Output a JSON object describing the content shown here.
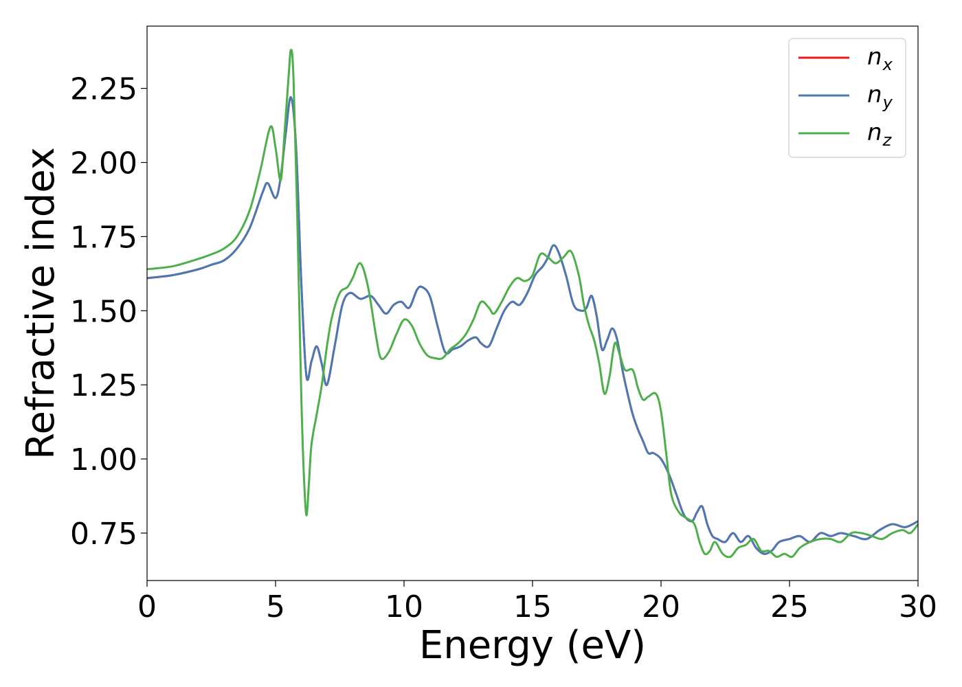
{
  "chart_data": {
    "type": "line",
    "xlabel": "Energy (eV)",
    "ylabel": "Refractive index",
    "xlim": [
      0,
      30
    ],
    "ylim": [
      0.59,
      2.46
    ],
    "xticks": [
      0,
      5,
      10,
      15,
      20,
      25,
      30
    ],
    "yticks": [
      0.75,
      1.0,
      1.25,
      1.5,
      1.75,
      2.0,
      2.25
    ],
    "xtick_labels": [
      "0",
      "5",
      "10",
      "15",
      "20",
      "25",
      "30"
    ],
    "ytick_labels": [
      "0.75",
      "1.00",
      "1.25",
      "1.50",
      "1.75",
      "2.00",
      "2.25"
    ],
    "grid": false,
    "legend_position": "top-right",
    "series": [
      {
        "name": "n",
        "subscript": "x",
        "color": "#e41a1c",
        "x": [
          0,
          1,
          2,
          2.5,
          3,
          3.5,
          4,
          4.5,
          4.7,
          5.0,
          5.2,
          5.4,
          5.6,
          5.8,
          6.0,
          6.2,
          6.4,
          6.6,
          6.8,
          7.0,
          7.3,
          7.6,
          7.9,
          8.3,
          8.7,
          9.0,
          9.3,
          9.6,
          9.9,
          10.2,
          10.5,
          10.7,
          11.0,
          11.3,
          11.6,
          11.9,
          12.2,
          12.5,
          12.8,
          13.0,
          13.3,
          13.6,
          13.9,
          14.2,
          14.5,
          14.8,
          15.1,
          15.4,
          15.6,
          15.8,
          16.0,
          16.3,
          16.6,
          16.9,
          17.1,
          17.3,
          17.5,
          17.7,
          17.9,
          18.1,
          18.3,
          18.5,
          18.7,
          18.9,
          19.1,
          19.3,
          19.5,
          19.7,
          20.0,
          20.3,
          20.6,
          20.9,
          21.2,
          21.4,
          21.6,
          21.8,
          22.0,
          22.2,
          22.5,
          22.8,
          23.1,
          23.4,
          23.7,
          24.0,
          24.3,
          24.6,
          25.0,
          25.4,
          25.8,
          26.2,
          26.6,
          27.0,
          27.5,
          28.0,
          28.5,
          29.0,
          29.5,
          30.0
        ],
        "y": [
          1.61,
          1.62,
          1.64,
          1.655,
          1.67,
          1.71,
          1.78,
          1.9,
          1.93,
          1.88,
          1.95,
          2.1,
          2.22,
          2.05,
          1.6,
          1.28,
          1.33,
          1.38,
          1.32,
          1.25,
          1.38,
          1.52,
          1.56,
          1.54,
          1.55,
          1.52,
          1.49,
          1.52,
          1.53,
          1.51,
          1.57,
          1.58,
          1.55,
          1.45,
          1.36,
          1.37,
          1.38,
          1.4,
          1.41,
          1.39,
          1.38,
          1.44,
          1.5,
          1.53,
          1.52,
          1.56,
          1.62,
          1.65,
          1.68,
          1.72,
          1.7,
          1.62,
          1.52,
          1.5,
          1.51,
          1.55,
          1.48,
          1.37,
          1.4,
          1.44,
          1.4,
          1.3,
          1.22,
          1.15,
          1.1,
          1.06,
          1.02,
          1.02,
          1.0,
          0.95,
          0.88,
          0.81,
          0.79,
          0.82,
          0.84,
          0.78,
          0.74,
          0.73,
          0.72,
          0.75,
          0.72,
          0.74,
          0.7,
          0.68,
          0.69,
          0.72,
          0.73,
          0.74,
          0.72,
          0.75,
          0.74,
          0.75,
          0.74,
          0.73,
          0.76,
          0.78,
          0.77,
          0.79
        ]
      },
      {
        "name": "n",
        "subscript": "y",
        "color": "#4a7ab5",
        "x": [
          0,
          1,
          2,
          2.5,
          3,
          3.5,
          4,
          4.5,
          4.7,
          5.0,
          5.2,
          5.4,
          5.6,
          5.8,
          6.0,
          6.2,
          6.4,
          6.6,
          6.8,
          7.0,
          7.3,
          7.6,
          7.9,
          8.3,
          8.7,
          9.0,
          9.3,
          9.6,
          9.9,
          10.2,
          10.5,
          10.7,
          11.0,
          11.3,
          11.6,
          11.9,
          12.2,
          12.5,
          12.8,
          13.0,
          13.3,
          13.6,
          13.9,
          14.2,
          14.5,
          14.8,
          15.1,
          15.4,
          15.6,
          15.8,
          16.0,
          16.3,
          16.6,
          16.9,
          17.1,
          17.3,
          17.5,
          17.7,
          17.9,
          18.1,
          18.3,
          18.5,
          18.7,
          18.9,
          19.1,
          19.3,
          19.5,
          19.7,
          20.0,
          20.3,
          20.6,
          20.9,
          21.2,
          21.4,
          21.6,
          21.8,
          22.0,
          22.2,
          22.5,
          22.8,
          23.1,
          23.4,
          23.7,
          24.0,
          24.3,
          24.6,
          25.0,
          25.4,
          25.8,
          26.2,
          26.6,
          27.0,
          27.5,
          28.0,
          28.5,
          29.0,
          29.5,
          30.0
        ],
        "y": [
          1.61,
          1.62,
          1.64,
          1.655,
          1.67,
          1.71,
          1.78,
          1.9,
          1.93,
          1.88,
          1.95,
          2.1,
          2.22,
          2.05,
          1.6,
          1.28,
          1.33,
          1.38,
          1.32,
          1.25,
          1.38,
          1.52,
          1.56,
          1.54,
          1.55,
          1.52,
          1.49,
          1.52,
          1.53,
          1.51,
          1.57,
          1.58,
          1.55,
          1.45,
          1.36,
          1.37,
          1.38,
          1.4,
          1.41,
          1.39,
          1.38,
          1.44,
          1.5,
          1.53,
          1.52,
          1.56,
          1.62,
          1.65,
          1.68,
          1.72,
          1.7,
          1.62,
          1.52,
          1.5,
          1.51,
          1.55,
          1.48,
          1.37,
          1.4,
          1.44,
          1.4,
          1.3,
          1.22,
          1.15,
          1.1,
          1.06,
          1.02,
          1.02,
          1.0,
          0.95,
          0.88,
          0.81,
          0.79,
          0.82,
          0.84,
          0.78,
          0.74,
          0.73,
          0.72,
          0.75,
          0.72,
          0.74,
          0.7,
          0.68,
          0.69,
          0.72,
          0.73,
          0.74,
          0.72,
          0.75,
          0.74,
          0.75,
          0.74,
          0.73,
          0.76,
          0.78,
          0.77,
          0.79
        ]
      },
      {
        "name": "n",
        "subscript": "z",
        "color": "#4daf4a",
        "x": [
          0,
          1,
          2,
          2.5,
          3,
          3.5,
          4,
          4.4,
          4.8,
          5.0,
          5.2,
          5.35,
          5.5,
          5.6,
          5.7,
          5.85,
          6.0,
          6.1,
          6.2,
          6.3,
          6.4,
          6.6,
          6.8,
          7.0,
          7.2,
          7.5,
          7.8,
          8.0,
          8.3,
          8.6,
          8.9,
          9.1,
          9.4,
          9.7,
          10.0,
          10.3,
          10.6,
          10.9,
          11.2,
          11.5,
          11.8,
          12.1,
          12.4,
          12.7,
          13.0,
          13.3,
          13.5,
          13.8,
          14.1,
          14.4,
          14.7,
          15.0,
          15.3,
          15.6,
          15.9,
          16.2,
          16.5,
          16.8,
          17.0,
          17.2,
          17.4,
          17.6,
          17.8,
          18.0,
          18.2,
          18.4,
          18.6,
          18.9,
          19.1,
          19.3,
          19.5,
          19.8,
          20.0,
          20.2,
          20.4,
          20.7,
          21.0,
          21.3,
          21.5,
          21.7,
          21.9,
          22.1,
          22.4,
          22.7,
          23.0,
          23.3,
          23.6,
          23.9,
          24.2,
          24.5,
          24.8,
          25.1,
          25.4,
          25.8,
          26.2,
          26.6,
          27.0,
          27.4,
          27.8,
          28.2,
          28.6,
          29.0,
          29.4,
          29.7,
          30.0
        ],
        "y": [
          1.64,
          1.65,
          1.675,
          1.69,
          1.71,
          1.75,
          1.84,
          1.97,
          2.12,
          2.05,
          1.94,
          2.1,
          2.28,
          2.38,
          2.28,
          1.8,
          1.22,
          0.95,
          0.81,
          0.92,
          1.05,
          1.15,
          1.25,
          1.38,
          1.48,
          1.56,
          1.58,
          1.61,
          1.66,
          1.58,
          1.42,
          1.34,
          1.36,
          1.42,
          1.47,
          1.45,
          1.39,
          1.35,
          1.34,
          1.34,
          1.37,
          1.39,
          1.42,
          1.47,
          1.53,
          1.51,
          1.49,
          1.53,
          1.58,
          1.61,
          1.6,
          1.62,
          1.69,
          1.68,
          1.66,
          1.68,
          1.7,
          1.62,
          1.52,
          1.45,
          1.4,
          1.32,
          1.22,
          1.28,
          1.39,
          1.35,
          1.3,
          1.3,
          1.24,
          1.2,
          1.21,
          1.22,
          1.16,
          1.02,
          0.88,
          0.82,
          0.8,
          0.78,
          0.72,
          0.68,
          0.69,
          0.72,
          0.68,
          0.67,
          0.7,
          0.71,
          0.73,
          0.69,
          0.69,
          0.67,
          0.68,
          0.67,
          0.7,
          0.72,
          0.73,
          0.73,
          0.72,
          0.75,
          0.75,
          0.74,
          0.73,
          0.75,
          0.76,
          0.75,
          0.78
        ]
      }
    ]
  }
}
